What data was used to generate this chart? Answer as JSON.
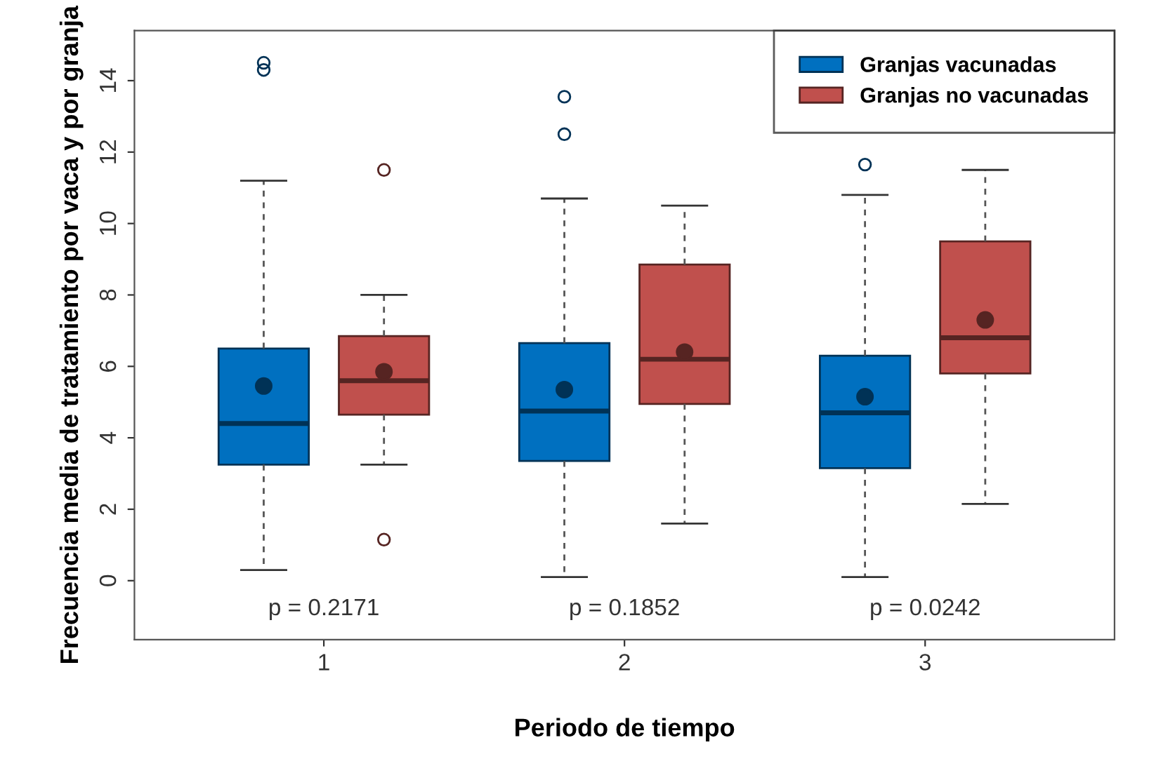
{
  "chart_data": {
    "type": "box",
    "xlabel": "Periodo de tiempo",
    "ylabel": "Frecuencia media de tratamiento por vaca y por granja",
    "categories": [
      "1",
      "2",
      "3"
    ],
    "series": [
      {
        "name": "Granjas vacunadas",
        "color": "#0070c0",
        "boxes": [
          {
            "low": 0.3,
            "q1": 3.25,
            "median": 4.4,
            "q3": 6.5,
            "high": 11.2,
            "mean": 5.45,
            "outliers": [
              14.3,
              14.5
            ]
          },
          {
            "low": 0.1,
            "q1": 3.35,
            "median": 4.75,
            "q3": 6.65,
            "high": 10.7,
            "mean": 5.35,
            "outliers": [
              12.5,
              13.55
            ]
          },
          {
            "low": 0.1,
            "q1": 3.15,
            "median": 4.7,
            "q3": 6.3,
            "high": 10.8,
            "mean": 5.15,
            "outliers": [
              11.65
            ]
          }
        ]
      },
      {
        "name": "Granjas no vacunadas",
        "color": "#c0504d",
        "boxes": [
          {
            "low": 3.25,
            "q1": 4.65,
            "median": 5.6,
            "q3": 6.85,
            "high": 8.0,
            "mean": 5.85,
            "outliers": [
              11.5,
              1.15
            ]
          },
          {
            "low": 1.6,
            "q1": 4.95,
            "median": 6.2,
            "q3": 8.85,
            "high": 10.5,
            "mean": 6.4
          },
          {
            "low": 2.15,
            "q1": 5.8,
            "median": 6.8,
            "q3": 9.5,
            "high": 11.5,
            "mean": 7.3
          }
        ]
      }
    ],
    "ylim": [
      -1.65,
      15.4
    ],
    "yticks": [
      0,
      2,
      4,
      6,
      8,
      10,
      12,
      14
    ],
    "grid": false,
    "legend": "top right",
    "annotations": [
      "p = 0.2171",
      "p = 0.1852",
      "p = 0.0242"
    ]
  }
}
